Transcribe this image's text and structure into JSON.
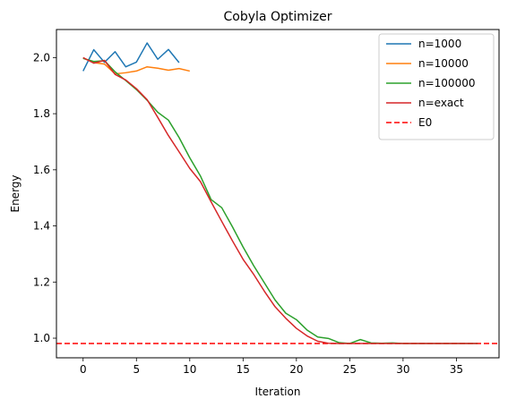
{
  "chart_data": {
    "type": "line",
    "title": "Cobyla Optimizer",
    "xlabel": "Iteration",
    "ylabel": "Energy",
    "xlim": [
      -2.5,
      39
    ],
    "ylim": [
      0.93,
      2.1
    ],
    "xticks": [
      0,
      5,
      10,
      15,
      20,
      25,
      30,
      35
    ],
    "yticks": [
      1.0,
      1.2,
      1.4,
      1.6,
      1.8,
      2.0
    ],
    "ytick_labels": [
      "1.0",
      "1.2",
      "1.4",
      "1.6",
      "1.8",
      "2.0"
    ],
    "grid": false,
    "legend_position": "top-right",
    "series": [
      {
        "name": "n=1000",
        "color": "#1f77b4",
        "dash": false,
        "x": [
          0,
          1,
          2,
          3,
          4,
          5,
          6,
          7,
          8,
          9
        ],
        "y": [
          1.952,
          2.028,
          1.983,
          2.021,
          1.967,
          1.984,
          2.052,
          1.994,
          2.029,
          1.982
        ]
      },
      {
        "name": "n=10000",
        "color": "#ff7f0e",
        "dash": false,
        "x": [
          0,
          1,
          2,
          3,
          4,
          5,
          6,
          7,
          8,
          9,
          10
        ],
        "y": [
          1.999,
          1.982,
          1.977,
          1.942,
          1.946,
          1.952,
          1.967,
          1.962,
          1.955,
          1.961,
          1.952
        ]
      },
      {
        "name": "n=100000",
        "color": "#2ca02c",
        "dash": false,
        "x": [
          0,
          1,
          2,
          3,
          4,
          5,
          6,
          7,
          8,
          9,
          10,
          11,
          12,
          13,
          14,
          15,
          16,
          17,
          18,
          19,
          20,
          21,
          22,
          23,
          24,
          25,
          26,
          27,
          28,
          29,
          30,
          31,
          32,
          33,
          34,
          35,
          36,
          37
        ],
        "y": [
          1.997,
          1.986,
          1.989,
          1.949,
          1.918,
          1.886,
          1.848,
          1.805,
          1.777,
          1.715,
          1.643,
          1.578,
          1.494,
          1.465,
          1.397,
          1.325,
          1.258,
          1.197,
          1.136,
          1.089,
          1.066,
          1.029,
          1.004,
          0.999,
          0.984,
          0.981,
          0.995,
          0.983,
          0.982,
          0.983,
          0.981,
          0.981,
          0.981,
          0.981,
          0.981,
          0.981,
          0.981,
          0.981
        ]
      },
      {
        "name": "n=exact",
        "color": "#d62728",
        "dash": false,
        "x": [
          0,
          1,
          2,
          3,
          4,
          5,
          6,
          7,
          8,
          9,
          10,
          11,
          12,
          13,
          14,
          15,
          16,
          17,
          18,
          19,
          20,
          21,
          22,
          23,
          24,
          25,
          26,
          27,
          28,
          29,
          30,
          31,
          32,
          33,
          34,
          35,
          36,
          37
        ],
        "y": [
          2.0,
          1.98,
          1.99,
          1.94,
          1.92,
          1.889,
          1.85,
          1.787,
          1.722,
          1.664,
          1.605,
          1.558,
          1.486,
          1.416,
          1.347,
          1.281,
          1.227,
          1.167,
          1.112,
          1.071,
          1.035,
          1.008,
          0.989,
          0.982,
          0.981,
          0.981,
          0.981,
          0.981,
          0.981,
          0.981,
          0.981,
          0.981,
          0.981,
          0.981,
          0.981,
          0.981,
          0.981,
          0.981
        ]
      }
    ],
    "reference_lines": [
      {
        "name": "E0",
        "color": "#ff0000",
        "dash": true,
        "y": 0.981
      }
    ]
  }
}
